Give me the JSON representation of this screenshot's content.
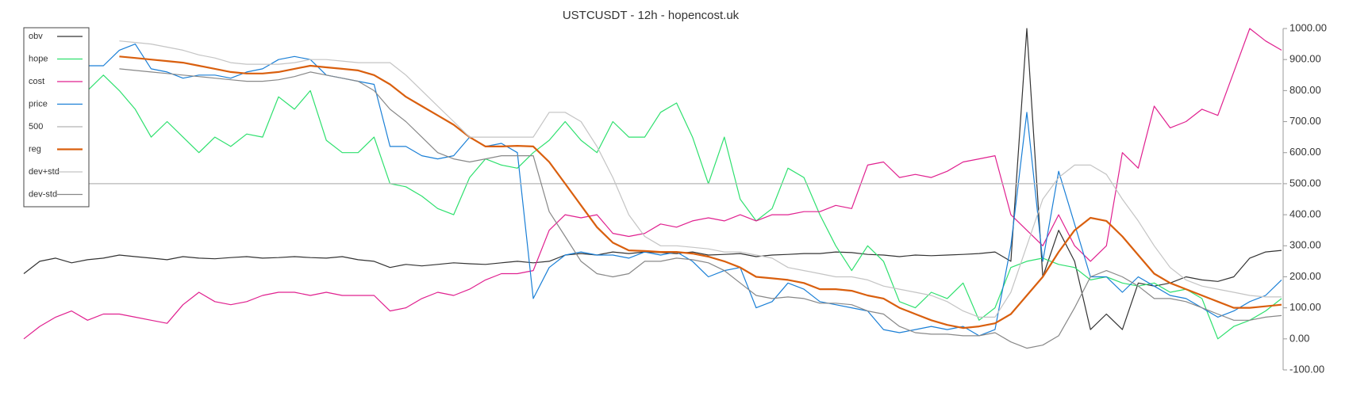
{
  "chart_data": {
    "type": "line",
    "title": "USTCUSDT - 12h - hopencost.uk",
    "ylim": [
      -100,
      1000
    ],
    "yticks": [
      {
        "value": -100,
        "label": "-100.00"
      },
      {
        "value": 0,
        "label": "0.00"
      },
      {
        "value": 100,
        "label": "100.00"
      },
      {
        "value": 200,
        "label": "200.00"
      },
      {
        "value": 300,
        "label": "300.00"
      },
      {
        "value": 400,
        "label": "400.00"
      },
      {
        "value": 500,
        "label": "500.00"
      },
      {
        "value": 600,
        "label": "600.00"
      },
      {
        "value": 700,
        "label": "700.00"
      },
      {
        "value": 800,
        "label": "800.00"
      },
      {
        "value": 900,
        "label": "900.00"
      },
      {
        "value": 1000,
        "label": "1000.00"
      }
    ],
    "y_axis_side": "right",
    "legend": "top-left",
    "grid": false,
    "series": [
      {
        "name": "obv",
        "color": "#333333",
        "width": 1.2,
        "values": [
          210,
          250,
          260,
          245,
          255,
          260,
          270,
          265,
          260,
          255,
          265,
          260,
          258,
          262,
          265,
          260,
          262,
          265,
          262,
          260,
          265,
          255,
          250,
          230,
          240,
          235,
          240,
          245,
          242,
          240,
          245,
          250,
          245,
          250,
          270,
          275,
          270,
          280,
          275,
          280,
          278,
          275,
          280,
          270,
          272,
          275,
          265,
          270,
          272,
          275,
          275,
          280,
          278,
          272,
          270,
          265,
          270,
          268,
          270,
          272,
          275,
          280,
          250,
          1000,
          200,
          350,
          250,
          30,
          80,
          30,
          180,
          170,
          180,
          200,
          190,
          185,
          200,
          260,
          280,
          285
        ]
      },
      {
        "name": "hope",
        "color": "#2ee06e",
        "width": 1.2,
        "values": [
          null,
          null,
          null,
          null,
          800,
          850,
          800,
          740,
          650,
          700,
          650,
          600,
          650,
          620,
          660,
          650,
          780,
          740,
          800,
          640,
          600,
          600,
          650,
          500,
          490,
          460,
          420,
          400,
          520,
          580,
          560,
          550,
          600,
          640,
          700,
          640,
          600,
          700,
          650,
          650,
          730,
          760,
          650,
          500,
          650,
          450,
          380,
          420,
          550,
          520,
          400,
          300,
          220,
          300,
          250,
          120,
          100,
          150,
          130,
          180,
          60,
          100,
          230,
          250,
          260,
          240,
          230,
          190,
          200,
          180,
          170,
          180,
          150,
          160,
          130,
          0,
          40,
          60,
          90,
          130
        ]
      },
      {
        "name": "cost",
        "color": "#e0208f",
        "width": 1.2,
        "values": [
          0,
          40,
          70,
          90,
          60,
          80,
          80,
          70,
          60,
          50,
          110,
          150,
          120,
          110,
          120,
          140,
          150,
          150,
          140,
          150,
          140,
          140,
          140,
          90,
          100,
          130,
          150,
          140,
          160,
          190,
          210,
          210,
          220,
          350,
          400,
          390,
          400,
          340,
          330,
          340,
          370,
          360,
          380,
          390,
          380,
          400,
          380,
          400,
          400,
          410,
          410,
          430,
          420,
          560,
          570,
          520,
          530,
          520,
          540,
          570,
          580,
          590,
          400,
          350,
          300,
          400,
          300,
          250,
          300,
          600,
          550,
          750,
          680,
          700,
          740,
          720,
          860,
          1000,
          960,
          930
        ]
      },
      {
        "name": "price",
        "color": "#1a7fd6",
        "width": 1.2,
        "values": [
          null,
          null,
          null,
          null,
          880,
          880,
          930,
          950,
          870,
          860,
          840,
          850,
          850,
          840,
          860,
          870,
          900,
          910,
          900,
          850,
          840,
          830,
          820,
          620,
          620,
          590,
          580,
          590,
          650,
          620,
          630,
          600,
          130,
          230,
          270,
          280,
          270,
          270,
          260,
          280,
          270,
          280,
          250,
          200,
          220,
          230,
          100,
          120,
          180,
          160,
          120,
          110,
          100,
          90,
          30,
          20,
          30,
          40,
          30,
          40,
          10,
          30,
          300,
          730,
          250,
          540,
          370,
          200,
          200,
          150,
          200,
          170,
          140,
          130,
          100,
          70,
          90,
          120,
          140,
          190
        ]
      },
      {
        "name": "500",
        "color": "#b5b5b5",
        "width": 1.2,
        "values": [
          500,
          500,
          500,
          500,
          500,
          500,
          500,
          500,
          500,
          500,
          500,
          500,
          500,
          500,
          500,
          500,
          500,
          500,
          500,
          500,
          500,
          500,
          500,
          500,
          500,
          500,
          500,
          500,
          500,
          500,
          500,
          500,
          500,
          500,
          500,
          500,
          500,
          500,
          500,
          500,
          500,
          500,
          500,
          500,
          500,
          500,
          500,
          500,
          500,
          500,
          500,
          500,
          500,
          500,
          500,
          500,
          500,
          500,
          500,
          500,
          500,
          500,
          500,
          500,
          500,
          500,
          500,
          500,
          500,
          500,
          500,
          500,
          500,
          500,
          500,
          500,
          500,
          500,
          500,
          500
        ]
      },
      {
        "name": "reg",
        "color": "#d95f0e",
        "width": 2.2,
        "values": [
          null,
          null,
          null,
          null,
          null,
          null,
          910,
          905,
          900,
          895,
          890,
          880,
          870,
          860,
          855,
          855,
          860,
          870,
          880,
          875,
          870,
          865,
          850,
          820,
          780,
          750,
          720,
          690,
          650,
          620,
          620,
          622,
          620,
          570,
          500,
          430,
          360,
          310,
          285,
          283,
          280,
          280,
          275,
          265,
          250,
          230,
          200,
          195,
          190,
          180,
          160,
          160,
          155,
          140,
          130,
          100,
          80,
          60,
          45,
          35,
          40,
          50,
          80,
          140,
          200,
          280,
          350,
          390,
          380,
          330,
          270,
          210,
          180,
          160,
          140,
          120,
          100,
          100,
          105,
          110
        ]
      },
      {
        "name": "dev+std",
        "color": "#c4c4c4",
        "width": 1.2,
        "values": [
          null,
          null,
          null,
          null,
          null,
          null,
          960,
          955,
          950,
          940,
          930,
          915,
          905,
          890,
          885,
          885,
          885,
          890,
          900,
          900,
          895,
          890,
          890,
          890,
          850,
          800,
          750,
          700,
          650,
          650,
          650,
          650,
          650,
          730,
          730,
          700,
          620,
          520,
          400,
          330,
          300,
          300,
          295,
          290,
          280,
          280,
          270,
          260,
          230,
          220,
          210,
          200,
          200,
          190,
          170,
          160,
          150,
          140,
          120,
          90,
          70,
          70,
          150,
          300,
          450,
          520,
          560,
          560,
          530,
          450,
          380,
          300,
          230,
          190,
          170,
          160,
          150,
          140,
          135,
          135
        ]
      },
      {
        "name": "dev-std",
        "color": "#888888",
        "width": 1.2,
        "values": [
          null,
          null,
          null,
          null,
          null,
          null,
          870,
          865,
          860,
          855,
          850,
          845,
          840,
          835,
          830,
          830,
          835,
          845,
          860,
          850,
          840,
          830,
          800,
          740,
          700,
          650,
          600,
          580,
          570,
          580,
          590,
          590,
          590,
          410,
          330,
          250,
          210,
          200,
          210,
          250,
          250,
          260,
          255,
          245,
          220,
          180,
          140,
          130,
          135,
          130,
          115,
          115,
          110,
          90,
          80,
          40,
          20,
          15,
          15,
          10,
          10,
          20,
          -10,
          -30,
          -20,
          10,
          100,
          200,
          220,
          200,
          170,
          130,
          130,
          120,
          100,
          80,
          60,
          60,
          70,
          75
        ]
      }
    ]
  }
}
